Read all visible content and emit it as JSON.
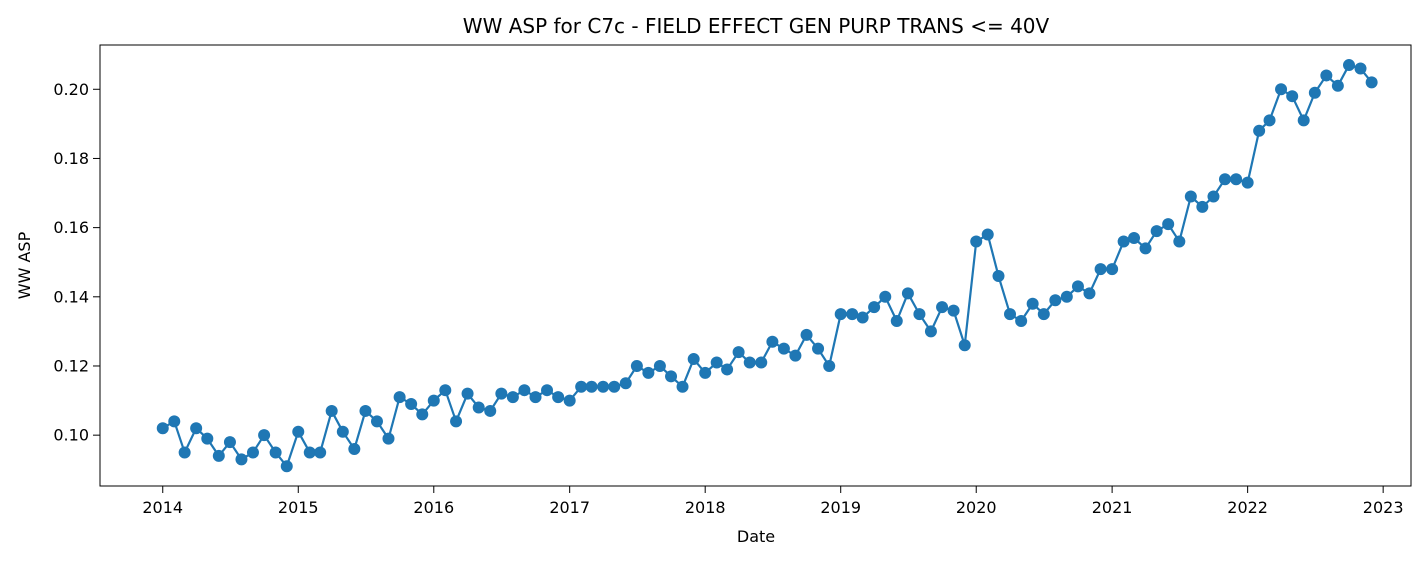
{
  "chart_data": {
    "type": "line",
    "title": "WW ASP for C7c - FIELD EFFECT GEN PURP TRANS <= 40V",
    "xlabel": "Date",
    "ylabel": "WW ASP",
    "xlim": [
      "2013-07-16",
      "2023-03-17"
    ],
    "ylim": [
      0.0853,
      0.2128
    ],
    "xticks": [
      "2014",
      "2015",
      "2016",
      "2017",
      "2018",
      "2019",
      "2020",
      "2021",
      "2022",
      "2023"
    ],
    "yticks": [
      "0.10",
      "0.12",
      "0.14",
      "0.16",
      "0.18",
      "0.20"
    ],
    "grid": false,
    "marker": "circle",
    "color": "#1f77b4",
    "series": [
      {
        "x": [
          "2014-01",
          "2014-02",
          "2014-03",
          "2014-04",
          "2014-05",
          "2014-06",
          "2014-07",
          "2014-08",
          "2014-09",
          "2014-10",
          "2014-11",
          "2014-12",
          "2015-01",
          "2015-02",
          "2015-03",
          "2015-04",
          "2015-05",
          "2015-06",
          "2015-07",
          "2015-08",
          "2015-09",
          "2015-10",
          "2015-11",
          "2015-12",
          "2016-01",
          "2016-02",
          "2016-03",
          "2016-04",
          "2016-05",
          "2016-06",
          "2016-07",
          "2016-08",
          "2016-09",
          "2016-10",
          "2016-11",
          "2016-12",
          "2017-01",
          "2017-02",
          "2017-03",
          "2017-04",
          "2017-05",
          "2017-06",
          "2017-07",
          "2017-08",
          "2017-09",
          "2017-10",
          "2017-11",
          "2017-12",
          "2018-01",
          "2018-02",
          "2018-03",
          "2018-04",
          "2018-05",
          "2018-06",
          "2018-07",
          "2018-08",
          "2018-09",
          "2018-10",
          "2018-11",
          "2018-12",
          "2019-01",
          "2019-02",
          "2019-03",
          "2019-04",
          "2019-05",
          "2019-06",
          "2019-07",
          "2019-08",
          "2019-09",
          "2019-10",
          "2019-11",
          "2019-12",
          "2020-01",
          "2020-02",
          "2020-03",
          "2020-04",
          "2020-05",
          "2020-06",
          "2020-07",
          "2020-08",
          "2020-09",
          "2020-10",
          "2020-11",
          "2020-12",
          "2021-01",
          "2021-02",
          "2021-03",
          "2021-04",
          "2021-05",
          "2021-06",
          "2021-07",
          "2021-08",
          "2021-09",
          "2021-10",
          "2021-11",
          "2021-12",
          "2022-01",
          "2022-02",
          "2022-03",
          "2022-04",
          "2022-05",
          "2022-06",
          "2022-07",
          "2022-08",
          "2022-09",
          "2022-10",
          "2022-11",
          "2022-12"
        ],
        "values": [
          0.102,
          0.104,
          0.095,
          0.102,
          0.099,
          0.094,
          0.098,
          0.093,
          0.095,
          0.1,
          0.095,
          0.091,
          0.101,
          0.095,
          0.095,
          0.107,
          0.101,
          0.096,
          0.107,
          0.104,
          0.099,
          0.111,
          0.109,
          0.106,
          0.11,
          0.113,
          0.104,
          0.112,
          0.108,
          0.107,
          0.112,
          0.111,
          0.113,
          0.111,
          0.113,
          0.111,
          0.11,
          0.114,
          0.114,
          0.114,
          0.114,
          0.115,
          0.12,
          0.118,
          0.12,
          0.117,
          0.114,
          0.122,
          0.118,
          0.121,
          0.119,
          0.124,
          0.121,
          0.121,
          0.127,
          0.125,
          0.123,
          0.129,
          0.125,
          0.12,
          0.135,
          0.135,
          0.134,
          0.137,
          0.14,
          0.133,
          0.141,
          0.135,
          0.13,
          0.137,
          0.136,
          0.126,
          0.156,
          0.158,
          0.146,
          0.135,
          0.133,
          0.138,
          0.135,
          0.139,
          0.14,
          0.143,
          0.141,
          0.148,
          0.148,
          0.156,
          0.157,
          0.154,
          0.159,
          0.161,
          0.156,
          0.169,
          0.166,
          0.169,
          0.174,
          0.174,
          0.173,
          0.188,
          0.191,
          0.2,
          0.198,
          0.191,
          0.199,
          0.204,
          0.201,
          0.207,
          0.206,
          0.202
        ]
      }
    ]
  }
}
